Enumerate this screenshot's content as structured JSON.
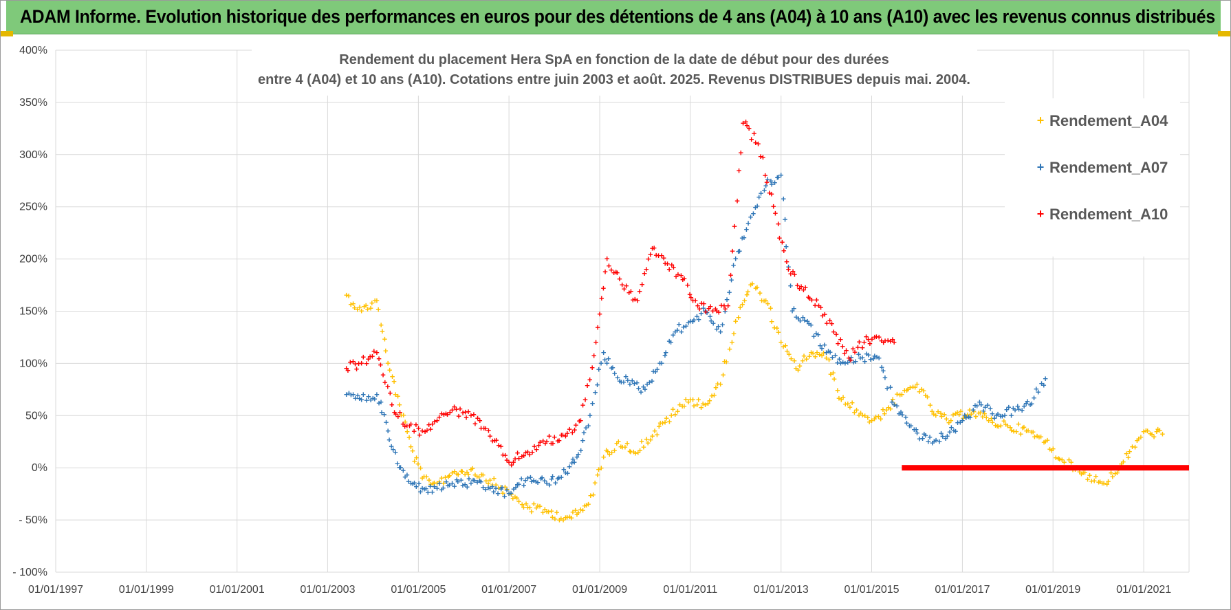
{
  "banner": {
    "title": "ADAM Informe. Evolution historique des performances en euros pour des détentions de 4 ans (A04) à 10 ans (A10) avec les revenus connus distribués"
  },
  "colors": {
    "banner_bg": "#7fc97a",
    "A04": "#ffc000",
    "A07": "#2e75b6",
    "A10": "#ff0000",
    "grid": "#d9d9d9"
  },
  "chart_data": {
    "type": "scatter",
    "title_lines": [
      "Rendement du placement Hera SpA en fonction de la date de début pour des durées",
      "entre 4 (A04) et 10 ans (A10). Cotations entre juin 2003 et août. 2025. Revenus DISTRIBUES depuis mai. 2004."
    ],
    "xlabel": "",
    "ylabel": "",
    "x_ticks": [
      "01/01/1997",
      "01/01/1999",
      "01/01/2001",
      "01/01/2003",
      "01/01/2005",
      "01/01/2007",
      "01/01/2009",
      "01/01/2011",
      "01/01/2013",
      "01/01/2015",
      "01/01/2017",
      "01/01/2019",
      "01/01/2021"
    ],
    "y_ticks": [
      "400%",
      "350%",
      "300%",
      "250%",
      "200%",
      "150%",
      "100%",
      "50%",
      "0%",
      "- 50%",
      "- 100%"
    ],
    "xlim": [
      "1997-01-01",
      "2022-01-01"
    ],
    "ylim": [
      -100,
      400
    ],
    "grid": true,
    "legend_position": "top-right",
    "marker": "+",
    "series": [
      {
        "name": "Rendement_A04",
        "x": [
          "2003-06",
          "2003-10",
          "2004-02",
          "2004-05",
          "2004-08",
          "2004-11",
          "2005-02",
          "2005-06",
          "2005-10",
          "2006-03",
          "2006-08",
          "2007-01",
          "2007-06",
          "2007-11",
          "2008-04",
          "2008-07",
          "2008-10",
          "2009-02",
          "2009-06",
          "2009-10",
          "2010-03",
          "2010-08",
          "2011-01",
          "2011-05",
          "2011-09",
          "2012-01",
          "2012-05",
          "2012-09",
          "2013-01",
          "2013-05",
          "2013-09",
          "2014-01",
          "2014-05",
          "2014-09",
          "2015-01",
          "2015-05",
          "2015-09",
          "2016-01",
          "2016-06",
          "2016-10",
          "2017-03",
          "2017-08",
          "2018-01",
          "2018-06",
          "2018-11",
          "2019-04",
          "2019-09",
          "2020-02",
          "2020-06",
          "2020-10",
          "2021-02",
          "2021-06"
        ],
        "y": [
          165,
          150,
          160,
          100,
          60,
          20,
          -10,
          -15,
          -5,
          -2,
          -12,
          -25,
          -38,
          -42,
          -48,
          -45,
          -35,
          10,
          25,
          15,
          30,
          50,
          65,
          60,
          80,
          140,
          175,
          160,
          120,
          95,
          110,
          105,
          65,
          55,
          45,
          55,
          70,
          80,
          50,
          45,
          55,
          45,
          40,
          35,
          25,
          5,
          -5,
          -15,
          -5,
          20,
          35,
          32
        ]
      },
      {
        "name": "Rendement_A07",
        "x": [
          "2003-06",
          "2003-10",
          "2004-02",
          "2004-05",
          "2004-08",
          "2004-11",
          "2005-02",
          "2005-06",
          "2005-10",
          "2006-03",
          "2006-08",
          "2007-01",
          "2007-06",
          "2007-11",
          "2008-04",
          "2008-07",
          "2008-10",
          "2009-02",
          "2009-05",
          "2009-09",
          "2010-01",
          "2010-05",
          "2010-09",
          "2011-01",
          "2011-05",
          "2011-09",
          "2012-01",
          "2012-05",
          "2012-09",
          "2013-01",
          "2013-04",
          "2013-08",
          "2014-01",
          "2014-06",
          "2014-10",
          "2015-03",
          "2015-07",
          "2015-11",
          "2016-04",
          "2016-09",
          "2017-01",
          "2017-06",
          "2017-10",
          "2018-03",
          "2018-07",
          "2018-11"
        ],
        "y": [
          70,
          65,
          70,
          35,
          0,
          -15,
          -20,
          -20,
          -15,
          -15,
          -20,
          -25,
          -10,
          -15,
          -5,
          10,
          40,
          110,
          90,
          80,
          75,
          100,
          130,
          140,
          150,
          130,
          200,
          240,
          270,
          280,
          150,
          140,
          110,
          100,
          105,
          105,
          60,
          40,
          25,
          30,
          45,
          60,
          50,
          55,
          60,
          85
        ]
      },
      {
        "name": "Rendement_A10",
        "x": [
          "2003-06",
          "2003-10",
          "2004-02",
          "2004-06",
          "2004-10",
          "2005-02",
          "2005-06",
          "2005-10",
          "2006-03",
          "2006-08",
          "2007-01",
          "2007-06",
          "2007-11",
          "2008-04",
          "2008-08",
          "2008-12",
          "2009-03",
          "2009-07",
          "2009-11",
          "2010-03",
          "2010-07",
          "2010-11",
          "2011-03",
          "2011-07",
          "2011-11",
          "2012-03",
          "2012-07",
          "2012-11",
          "2013-03",
          "2013-07",
          "2013-11",
          "2014-03",
          "2014-07",
          "2014-11",
          "2015-03",
          "2015-07"
        ],
        "y": [
          95,
          100,
          110,
          60,
          40,
          35,
          45,
          55,
          50,
          30,
          5,
          15,
          25,
          30,
          45,
          120,
          200,
          175,
          160,
          210,
          195,
          180,
          155,
          150,
          155,
          330,
          310,
          250,
          190,
          170,
          155,
          130,
          105,
          120,
          125,
          120
        ]
      }
    ],
    "zero_band": {
      "series": "Rendement_A10",
      "x_start": "2015-09",
      "x_end": "2022-01",
      "y": 0
    }
  }
}
